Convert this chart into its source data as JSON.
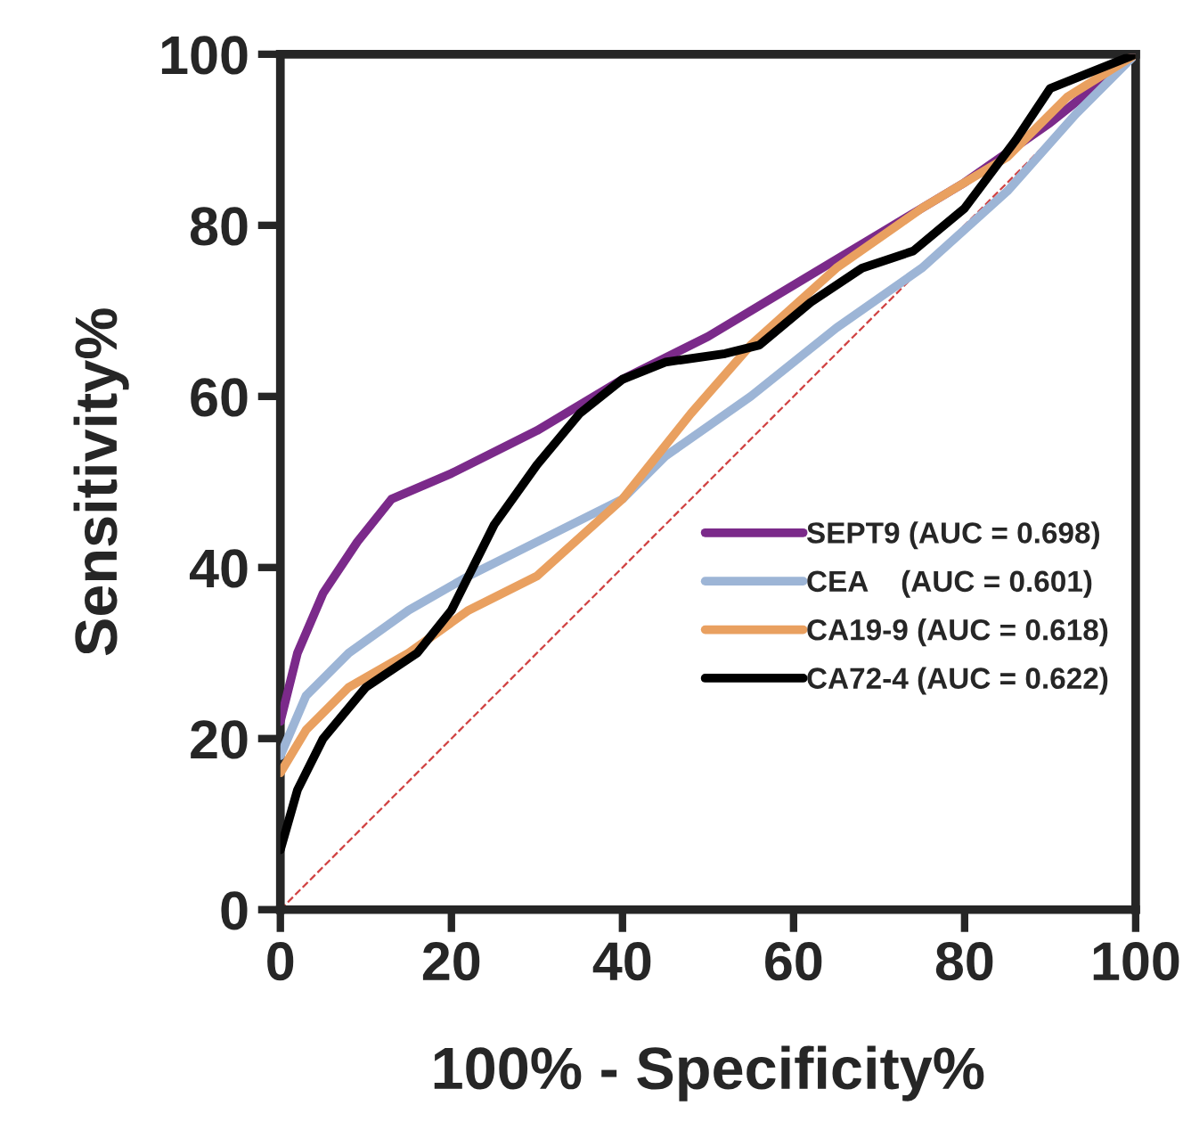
{
  "chart_data": {
    "type": "line",
    "xlabel": "100% - Specificity%",
    "ylabel": "Sensitivity%",
    "xlim": [
      0,
      100
    ],
    "ylim": [
      0,
      100
    ],
    "xticks": [
      0,
      20,
      40,
      60,
      80,
      100
    ],
    "yticks": [
      0,
      20,
      40,
      60,
      80,
      100
    ],
    "grid": false,
    "legend": "lower right",
    "marker": "none",
    "line_style": "solid",
    "series": [
      {
        "name": "SEPT9 (AUC = 0.698)",
        "color": "#7b2a8a",
        "x": [
          0,
          2,
          5,
          9,
          13,
          20,
          30,
          40,
          50,
          60,
          70,
          80,
          90,
          100
        ],
        "values": [
          22,
          30,
          37,
          43,
          48,
          51,
          56,
          62,
          67,
          73,
          79,
          85,
          92,
          100
        ]
      },
      {
        "name": "CEA    (AUC = 0.601)",
        "color": "#9db5d6",
        "x": [
          0,
          3,
          8,
          15,
          22,
          30,
          40,
          45,
          55,
          65,
          75,
          85,
          93,
          100
        ],
        "values": [
          18,
          25,
          30,
          35,
          39,
          43,
          48,
          53,
          60,
          68,
          75,
          84,
          93,
          100
        ]
      },
      {
        "name": "CA19-9 (AUC = 0.618)",
        "color": "#e9a060",
        "x": [
          0,
          3,
          8,
          15,
          22,
          30,
          40,
          48,
          55,
          65,
          75,
          85,
          92,
          100
        ],
        "values": [
          16,
          21,
          26,
          30,
          35,
          39,
          48,
          58,
          66,
          75,
          82,
          88,
          95,
          100
        ]
      },
      {
        "name": "CA72-4 (AUC = 0.622)",
        "color": "#000000",
        "x": [
          0,
          2,
          5,
          10,
          16,
          20,
          25,
          30,
          35,
          40,
          45,
          52,
          56,
          62,
          68,
          74,
          80,
          86,
          90,
          95,
          100
        ],
        "values": [
          7,
          14,
          20,
          26,
          30,
          35,
          45,
          52,
          58,
          62,
          64,
          65,
          66,
          71,
          75,
          77,
          82,
          90,
          96,
          98,
          100
        ]
      },
      {
        "color": "#d04040",
        "line_style": "dashed",
        "x": [
          0,
          100
        ],
        "values": [
          0,
          100
        ]
      }
    ]
  }
}
